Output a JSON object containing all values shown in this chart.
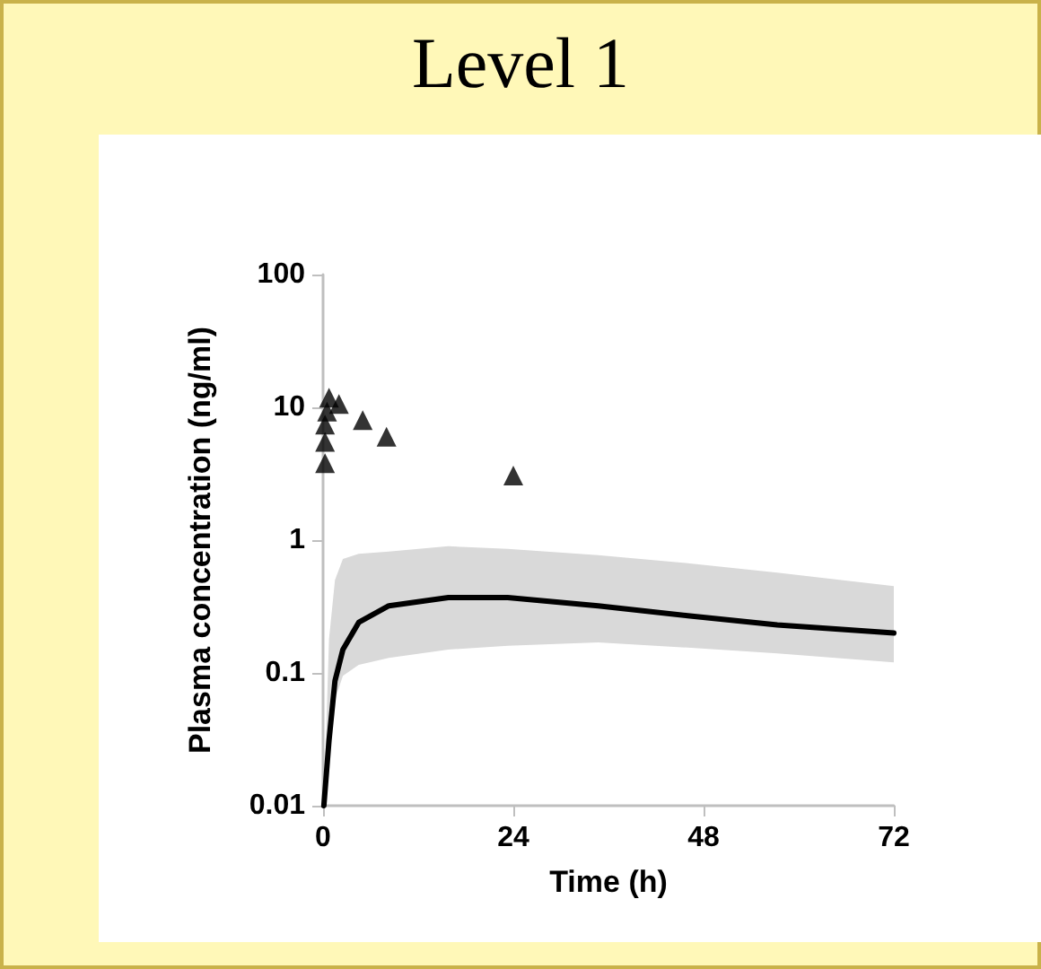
{
  "chart_data": {
    "type": "line",
    "title": "Level 1",
    "xlabel": "Time (h)",
    "ylabel": "Plasma concentration (ng/ml)",
    "log": "y",
    "grid": false,
    "xlim": [
      0,
      72
    ],
    "xticks": [
      0,
      24,
      48,
      72
    ],
    "ylim": [
      0.01,
      100
    ],
    "yticks": [
      0.01,
      0.1,
      1,
      10,
      100
    ],
    "series": [
      {
        "color": "#000000",
        "marker": "none",
        "line_style": "solid",
        "x": [
          0.1,
          0.75,
          1.5,
          2.5,
          4.5,
          8.3,
          15.8,
          23.3,
          34.7,
          46,
          57.3,
          72
        ],
        "values": [
          0.01,
          0.031,
          0.087,
          0.15,
          0.24,
          0.32,
          0.37,
          0.37,
          0.32,
          0.27,
          0.23,
          0.2
        ],
        "lower": [
          0.01,
          0.022,
          0.063,
          0.095,
          0.115,
          0.13,
          0.15,
          0.16,
          0.17,
          0.155,
          0.14,
          0.12
        ],
        "upper": [
          0.01,
          0.18,
          0.5,
          0.72,
          0.79,
          0.82,
          0.9,
          0.86,
          0.77,
          0.67,
          0.57,
          0.45
        ]
      },
      {
        "type": "scatter",
        "color": "#000000",
        "marker": "triangle",
        "x": [
          0.25,
          0.25,
          0.25,
          0.5,
          0.75,
          2,
          5,
          8,
          24
        ],
        "values": [
          3.8,
          5.5,
          7.4,
          9.3,
          11.8,
          10.6,
          8,
          6,
          3.06
        ]
      }
    ]
  }
}
